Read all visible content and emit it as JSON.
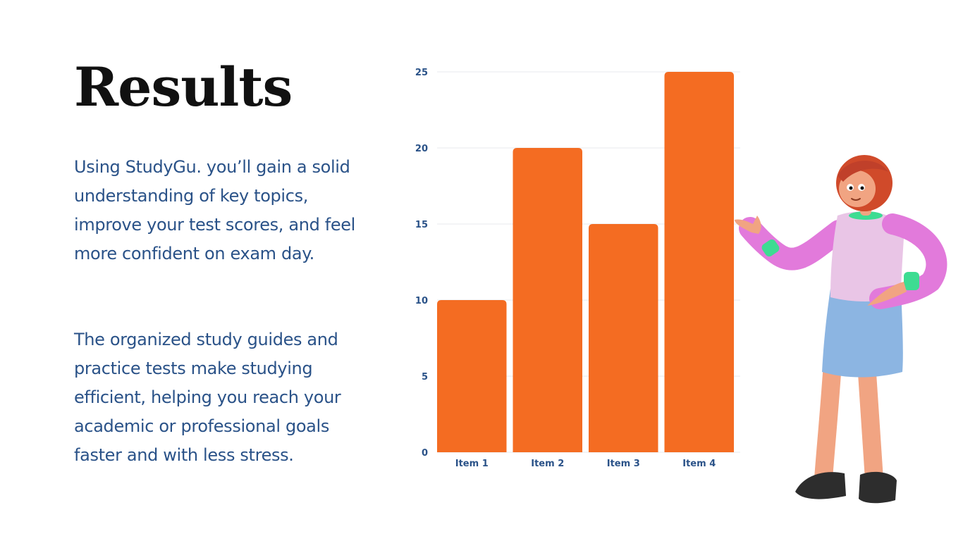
{
  "slide": {
    "title": "Results",
    "paragraphs": [
      "Using StudyGu. you’ll gain a solid understanding of key topics, improve your test scores, and feel more confident on exam day.",
      "The organized study guides and practice tests make studying efficient, helping you reach your academic or professional goals faster and with less stress."
    ]
  },
  "colors": {
    "title": "#111111",
    "body_text": "#2a5288",
    "bar": "#f46c22",
    "tick_label": "#2a5288",
    "gridline": "#e7eaee"
  },
  "chart_data": {
    "type": "bar",
    "categories": [
      "Item 1",
      "Item 2",
      "Item 3",
      "Item 4"
    ],
    "values": [
      10,
      20,
      15,
      25
    ],
    "ylim": [
      0,
      25
    ],
    "yticks": [
      0,
      5,
      10,
      15,
      20,
      25
    ],
    "grid": true,
    "legend": "none",
    "title": "",
    "xlabel": "",
    "ylabel": ""
  },
  "illustration": {
    "icon": "woman-presenting-illustration"
  }
}
